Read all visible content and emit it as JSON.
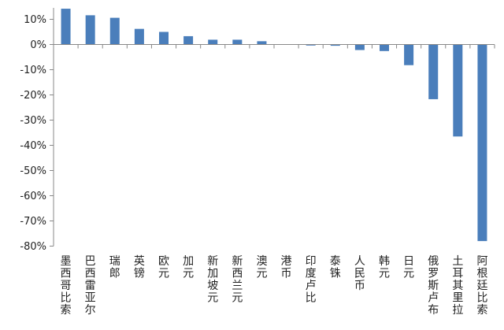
{
  "chart_data": {
    "type": "bar",
    "title": "",
    "xlabel": "",
    "ylabel": "",
    "ylim": [
      -80,
      15
    ],
    "yticks": [
      10,
      0,
      -10,
      -20,
      -30,
      -40,
      -50,
      -60,
      -70,
      -80
    ],
    "ytick_labels": [
      "10%",
      "0%",
      "-10%",
      "-20%",
      "-30%",
      "-40%",
      "-50%",
      "-60%",
      "-70%",
      "-80%"
    ],
    "grid": false,
    "legend": "none",
    "bar_color": "#4a7ebb",
    "categories": [
      "墨西哥比索",
      "巴西雷亚尔",
      "瑞郎",
      "英镑",
      "欧元",
      "加元",
      "新加坡元",
      "新西兰元",
      "澳元",
      "港币",
      "印度卢比",
      "泰铢",
      "人民币",
      "韩元",
      "日元",
      "俄罗斯卢布",
      "土耳其里拉",
      "阿根廷比索"
    ],
    "values": [
      14.2,
      11.6,
      10.6,
      6.2,
      5.0,
      3.3,
      1.9,
      1.9,
      1.3,
      0.1,
      -0.4,
      -0.5,
      -2.2,
      -2.6,
      -8.2,
      -21.7,
      -36.5,
      -78.0
    ]
  }
}
